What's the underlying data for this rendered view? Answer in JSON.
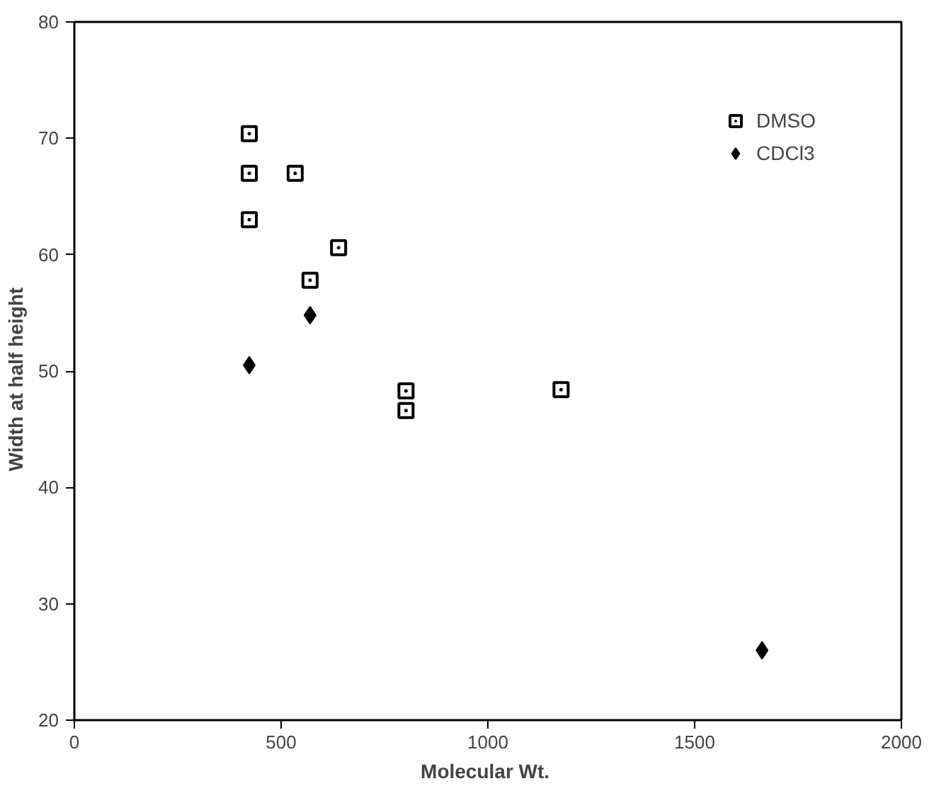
{
  "chart_data": {
    "type": "scatter",
    "xlabel": "Molecular  Wt.",
    "ylabel": "Width  at  half  height",
    "xlim": [
      0,
      2000
    ],
    "ylim": [
      20,
      80
    ],
    "xticks": [
      0,
      500,
      1000,
      1500,
      2000
    ],
    "yticks": [
      20,
      30,
      40,
      50,
      60,
      70,
      80
    ],
    "grid": false,
    "legend": "top right",
    "series": [
      {
        "name": "DMSO",
        "color": "#000000",
        "marker": "square",
        "x": [
          423,
          423,
          423,
          534,
          570,
          639,
          802,
          802,
          1177
        ],
        "values": [
          70.4,
          67,
          63,
          67,
          57.8,
          60.6,
          48.3,
          46.6,
          48.4
        ]
      },
      {
        "name": "CDCl3",
        "color": "#000000",
        "marker": "diamond",
        "x": [
          423,
          570,
          1663
        ],
        "values": [
          50.5,
          54.8,
          26
        ]
      }
    ]
  }
}
